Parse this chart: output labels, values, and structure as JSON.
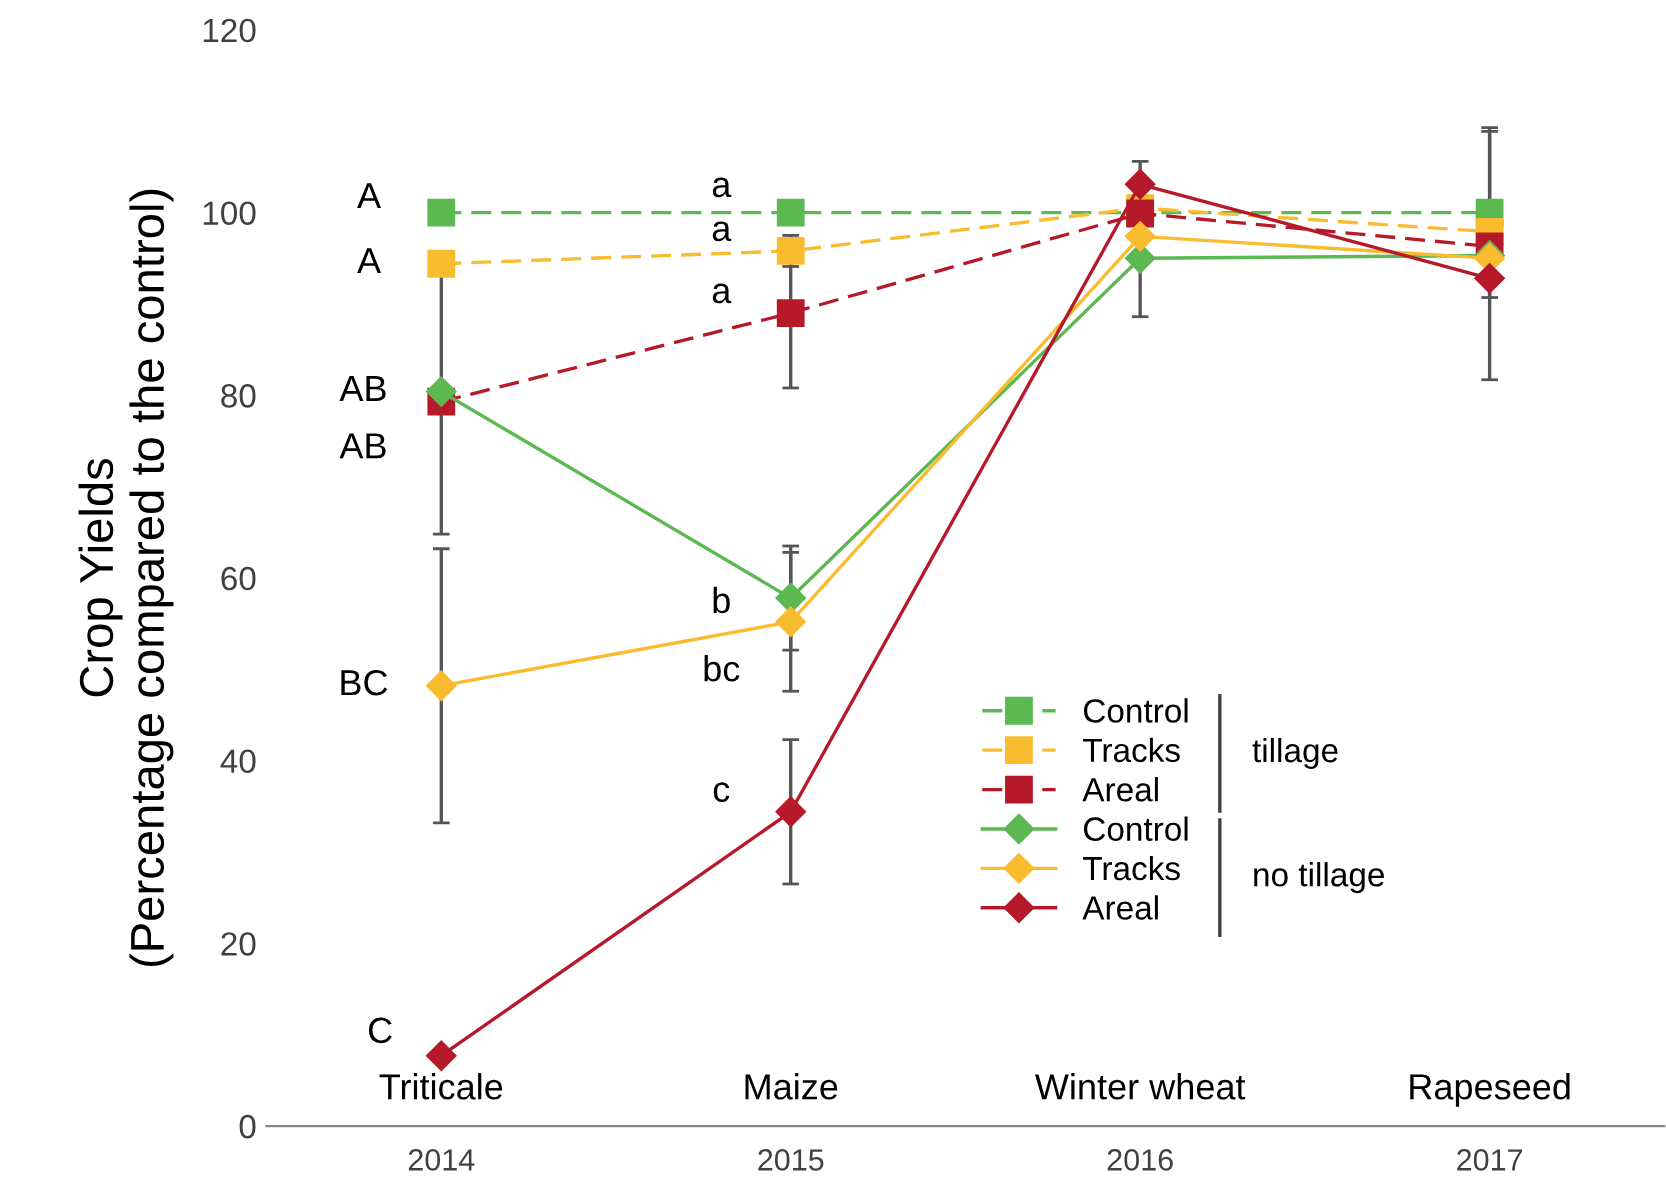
{
  "chart_data": {
    "type": "line",
    "ylabel": "Crop Yields\n(Percentage compared to the control)",
    "x": [
      2014,
      2015,
      2016,
      2017
    ],
    "xlim": [
      2013.5,
      2017.5
    ],
    "xticks": [
      2014,
      2015,
      2016,
      2017
    ],
    "ylim": [
      0,
      120
    ],
    "yticks": [
      0,
      20,
      40,
      60,
      80,
      100,
      120
    ],
    "grid": false,
    "legend": "bottom right",
    "series": [
      {
        "name": "Control",
        "color": "#5cb850",
        "marker": "square",
        "line_style": "dashed",
        "values": [
          100,
          100,
          100,
          100
        ],
        "errors": [
          null,
          null,
          null,
          9.3
        ],
        "value_labels": [
          "A",
          "a",
          null,
          null
        ]
      },
      {
        "name": "Tracks",
        "color": "#f9bc2f",
        "marker": "square",
        "line_style": "dashed",
        "values": [
          94.4,
          95.8,
          100.5,
          97.9
        ],
        "errors": [
          null,
          1.7,
          null,
          null
        ],
        "value_labels": [
          "A",
          "a",
          null,
          null
        ]
      },
      {
        "name": "Areal",
        "color": "#b5192a",
        "marker": "square",
        "line_style": "dashed",
        "values": [
          79.3,
          89.0,
          99.9,
          96.3
        ],
        "errors": [
          14.5,
          8.2,
          null,
          null
        ],
        "value_labels": [
          "AB",
          "a",
          null,
          null
        ]
      },
      {
        "name": "Control",
        "color": "#5cb850",
        "marker": "diamond",
        "line_style": "solid",
        "values": [
          80.4,
          57.8,
          95.0,
          95.3
        ],
        "errors": [
          null,
          5.7,
          6.4,
          13.6
        ],
        "value_labels": [
          "AB",
          "b",
          null,
          null
        ]
      },
      {
        "name": "Tracks",
        "color": "#f9bc2f",
        "marker": "diamond",
        "line_style": "solid",
        "values": [
          48.2,
          55.2,
          97.4,
          95.0
        ],
        "errors": [
          15,
          7.6,
          null,
          null
        ],
        "value_labels": [
          "BC",
          "bc",
          null,
          null
        ]
      },
      {
        "name": "Areal",
        "color": "#b5192a",
        "marker": "diamond",
        "line_style": "solid",
        "values": [
          7.7,
          34.4,
          103.1,
          92.8
        ],
        "errors": [
          null,
          7.9,
          2.5,
          null
        ],
        "value_labels": [
          "C",
          "c",
          null,
          null
        ]
      }
    ],
    "annotations": [
      "Triticale",
      "Maize",
      "Winter wheat",
      "Rapeseed",
      "tillage",
      "no tillage"
    ]
  }
}
